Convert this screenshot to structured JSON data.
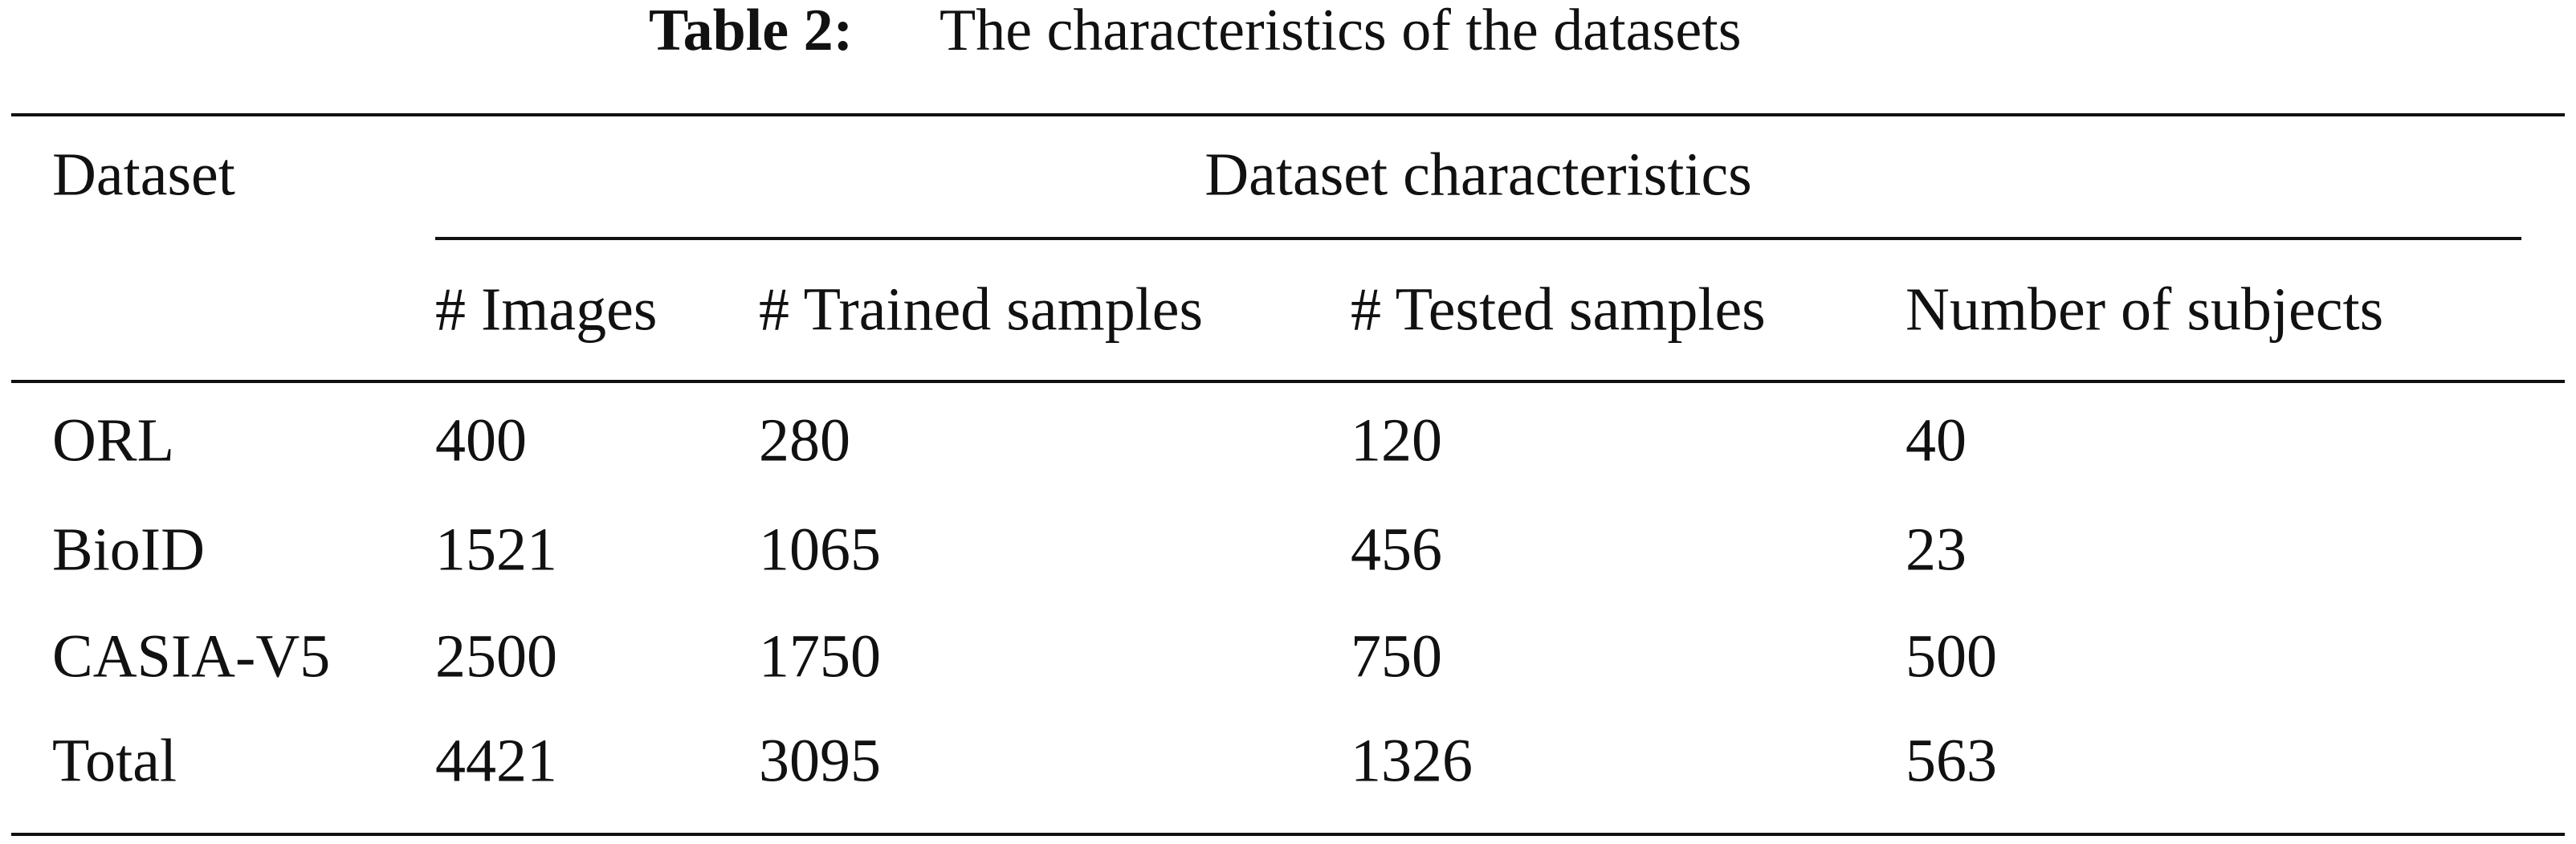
{
  "caption": {
    "label": "Table 2:",
    "text": "The characteristics of the datasets"
  },
  "table": {
    "header": {
      "first": "Dataset",
      "group": "Dataset characteristics",
      "columns": [
        "# Images",
        "# Trained samples",
        "# Tested samples",
        "Number of subjects"
      ]
    },
    "rows": [
      [
        "ORL",
        "400",
        "280",
        "120",
        "40"
      ],
      [
        "BioID",
        "1521",
        "1065",
        "456",
        "23"
      ],
      [
        "CASIA-V5",
        "2500",
        "1750",
        "750",
        "500"
      ],
      [
        "Total",
        "4421",
        "3095",
        "1326",
        "563"
      ]
    ]
  }
}
